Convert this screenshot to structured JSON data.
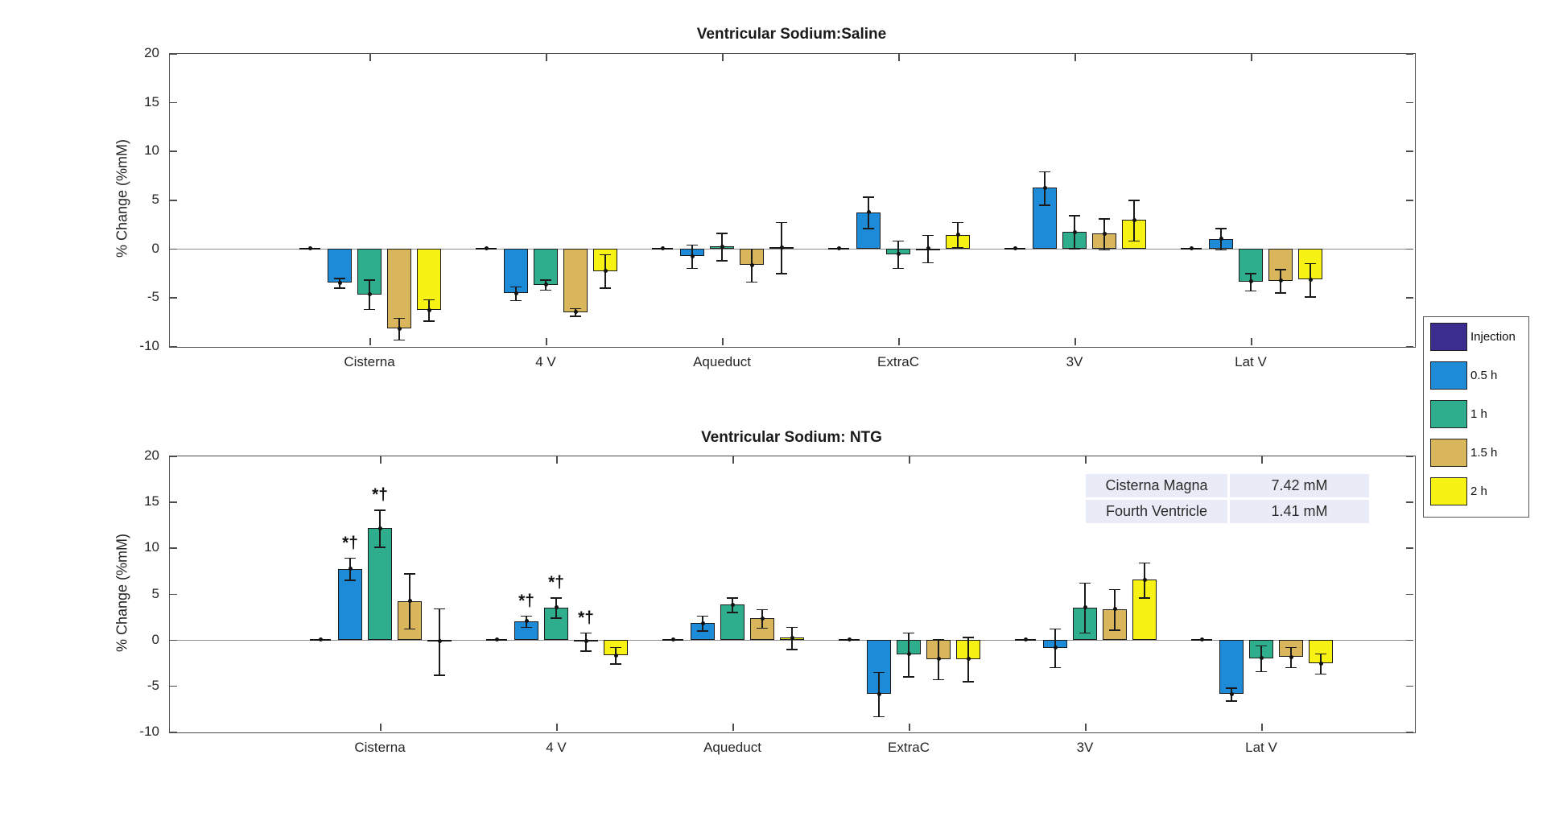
{
  "legend": {
    "items": [
      {
        "label": "Injection",
        "color": "#3a2d8f"
      },
      {
        "label": "0.5 h",
        "color": "#1d8bd8"
      },
      {
        "label": "1 h",
        "color": "#2fae8e"
      },
      {
        "label": "1.5 h",
        "color": "#d9b55c"
      },
      {
        "label": "2 h",
        "color": "#f7f213"
      }
    ]
  },
  "table": {
    "rows": [
      [
        "Cisterna Magna",
        "7.42 mM"
      ],
      [
        "Fourth Ventricle",
        "1.41 mM"
      ]
    ]
  },
  "chart_data": [
    {
      "type": "bar",
      "title": "Ventricular Sodium:Saline",
      "ylabel": "% Change (%mM)",
      "ylim": [
        -10,
        20
      ],
      "yticks": [
        20,
        15,
        10,
        5,
        0,
        -5,
        -10
      ],
      "grid": false,
      "legend_position": "right-outside",
      "categories": [
        "Cisterna",
        "4 V",
        "Aqueduct",
        "ExtraC",
        "3V",
        "Lat V"
      ],
      "series": [
        {
          "name": "Injection",
          "color": "#3a2d8f",
          "values": [
            0,
            0,
            0,
            0,
            0,
            0
          ],
          "errors": [
            0.1,
            0.1,
            0.1,
            0.1,
            0.1,
            0.1
          ]
        },
        {
          "name": "0.5 h",
          "color": "#1d8bd8",
          "values": [
            -3.5,
            -4.6,
            -0.8,
            3.7,
            6.2,
            1.0
          ],
          "errors": [
            0.5,
            0.7,
            1.2,
            1.6,
            1.7,
            1.1
          ]
        },
        {
          "name": "1 h",
          "color": "#2fae8e",
          "values": [
            -4.7,
            -3.7,
            0.2,
            -0.6,
            1.7,
            -3.4
          ],
          "errors": [
            1.5,
            0.5,
            1.4,
            1.4,
            1.7,
            0.9
          ]
        },
        {
          "name": "1.5 h",
          "color": "#d9b55c",
          "values": [
            -8.2,
            -6.5,
            -1.7,
            0.0,
            1.5,
            -3.3
          ],
          "errors": [
            1.1,
            0.4,
            1.7,
            1.4,
            1.6,
            1.2
          ]
        },
        {
          "name": "2 h",
          "color": "#f7f213",
          "values": [
            -6.3,
            -2.3,
            0.1,
            1.4,
            2.9,
            -3.2
          ],
          "errors": [
            1.1,
            1.7,
            2.6,
            1.3,
            2.1,
            1.7
          ]
        }
      ],
      "annotations": []
    },
    {
      "type": "bar",
      "title": "Ventricular Sodium: NTG",
      "ylabel": "% Change (%mM)",
      "ylim": [
        -10,
        20
      ],
      "yticks": [
        20,
        15,
        10,
        5,
        0,
        -5,
        -10
      ],
      "grid": false,
      "legend_position": "right-outside",
      "categories": [
        "Cisterna",
        "4 V",
        "Aqueduct",
        "ExtraC",
        "3V",
        "Lat V"
      ],
      "series": [
        {
          "name": "Injection",
          "color": "#3a2d8f",
          "values": [
            0,
            0,
            0,
            0,
            0,
            0
          ],
          "errors": [
            0.1,
            0.1,
            0.1,
            0.1,
            0.1,
            0.1
          ]
        },
        {
          "name": "0.5 h",
          "color": "#1d8bd8",
          "values": [
            7.7,
            2.0,
            1.8,
            -5.9,
            -0.9,
            -5.9
          ],
          "errors": [
            1.2,
            0.6,
            0.8,
            2.4,
            2.1,
            0.7
          ]
        },
        {
          "name": "1 h",
          "color": "#2fae8e",
          "values": [
            12.1,
            3.5,
            3.8,
            -1.6,
            3.5,
            -2.0
          ],
          "errors": [
            2.0,
            1.1,
            0.8,
            2.4,
            2.7,
            1.4
          ]
        },
        {
          "name": "1.5 h",
          "color": "#d9b55c",
          "values": [
            4.2,
            -0.2,
            2.3,
            -2.1,
            3.3,
            -1.9
          ],
          "errors": [
            3.0,
            1.0,
            1.0,
            2.2,
            2.2,
            1.1
          ]
        },
        {
          "name": "2 h",
          "color": "#f7f213",
          "values": [
            -0.2,
            -1.7,
            0.2,
            -2.1,
            6.5,
            -2.6
          ],
          "errors": [
            3.6,
            0.9,
            1.2,
            2.4,
            1.9,
            1.1
          ]
        }
      ],
      "annotations": [
        {
          "category_index": 0,
          "series_index": 1,
          "text": "*†"
        },
        {
          "category_index": 0,
          "series_index": 2,
          "text": "*†"
        },
        {
          "category_index": 1,
          "series_index": 1,
          "text": "*†"
        },
        {
          "category_index": 1,
          "series_index": 2,
          "text": "*†"
        },
        {
          "category_index": 1,
          "series_index": 3,
          "text": "*†"
        }
      ]
    }
  ]
}
